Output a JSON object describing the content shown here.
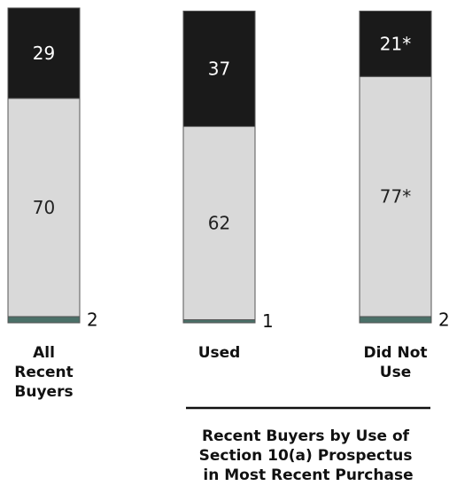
{
  "chart_data": {
    "type": "bar",
    "stacked": true,
    "orientation": "vertical",
    "categories": [
      [
        "All",
        "Recent",
        "Buyers"
      ],
      [
        "Used"
      ],
      [
        "Did Not",
        "Use"
      ]
    ],
    "series": [
      {
        "values": [
          2,
          1,
          2
        ],
        "labels": [
          "2",
          "1",
          "2"
        ],
        "color": "#4a7068",
        "label_position": "outside-right"
      },
      {
        "values": [
          70,
          62,
          77
        ],
        "labels": [
          "70",
          "62",
          "77*"
        ],
        "color": "#d9d9d9",
        "label_position": "inside"
      },
      {
        "values": [
          29,
          37,
          21
        ],
        "labels": [
          "29",
          "37",
          "21*"
        ],
        "color": "#1a1a1a",
        "label_position": "inside"
      }
    ],
    "group_title": [
      "Recent Buyers by Use of",
      "Section 10(a) Prospectus",
      "in Most Recent Purchase"
    ],
    "ylim": [
      0,
      101
    ],
    "grid": false,
    "legend": "none",
    "colors": {
      "outline": "#555555",
      "dark_text": "#ffffff",
      "light_text": "#222222",
      "rule": "#111111"
    }
  }
}
